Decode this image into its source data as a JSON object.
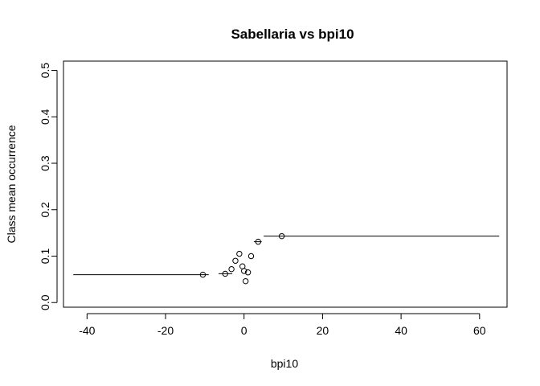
{
  "chart_data": {
    "type": "scatter",
    "title": "Sabellaria vs bpi10",
    "xlabel": "bpi10",
    "ylabel": "Class mean occurrence",
    "xlim": [
      -46,
      67
    ],
    "ylim": [
      -0.01,
      0.52
    ],
    "x_ticks": [
      -40,
      -20,
      0,
      20,
      40,
      60
    ],
    "y_ticks": [
      0.0,
      0.1,
      0.2,
      0.3,
      0.4,
      0.5
    ],
    "x_tick_labels": [
      "-40",
      "-20",
      "0",
      "20",
      "40",
      "60"
    ],
    "y_tick_labels": [
      "0.0",
      "0.1",
      "0.2",
      "0.3",
      "0.4",
      "0.5"
    ],
    "grid": false,
    "legend": "none",
    "points": [
      {
        "x": -10.5,
        "y": 0.06
      },
      {
        "x": -4.8,
        "y": 0.062
      },
      {
        "x": -3.2,
        "y": 0.072
      },
      {
        "x": -2.2,
        "y": 0.09
      },
      {
        "x": -1.2,
        "y": 0.105
      },
      {
        "x": -0.4,
        "y": 0.078
      },
      {
        "x": 0.0,
        "y": 0.068
      },
      {
        "x": 0.4,
        "y": 0.046
      },
      {
        "x": 1.0,
        "y": 0.065
      },
      {
        "x": 1.8,
        "y": 0.1
      },
      {
        "x": 3.6,
        "y": 0.131
      },
      {
        "x": 9.6,
        "y": 0.143
      }
    ],
    "step_segments": [
      {
        "x1": -43.5,
        "x2": -9.0,
        "y": 0.06
      },
      {
        "x1": -6.5,
        "x2": -3.0,
        "y": 0.062
      },
      {
        "x1": 2.5,
        "x2": 4.5,
        "y": 0.131
      },
      {
        "x1": 5.0,
        "x2": 65.0,
        "y": 0.143
      }
    ]
  }
}
